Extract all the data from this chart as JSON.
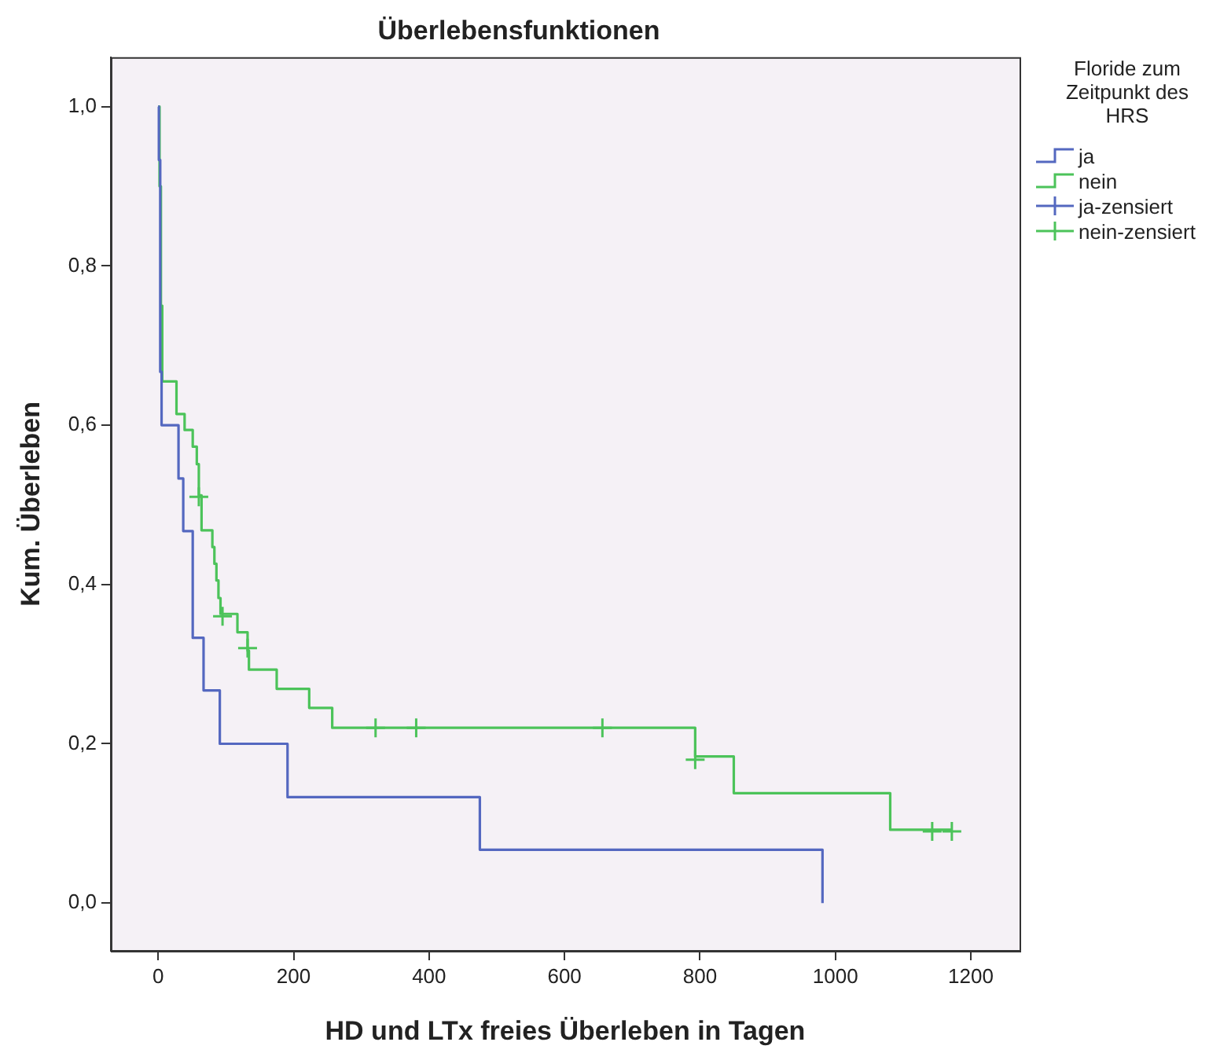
{
  "chart_data": {
    "type": "step",
    "title": "Überlebensfunktionen",
    "xlabel": "HD und LTx freies Überleben in Tagen",
    "ylabel": "Kum. Überleben",
    "legend_title": "Floride zum Zeitpunkt des HRS",
    "series": [
      {
        "name": "ja",
        "color": "#5468c0",
        "x": [
          0,
          1,
          3,
          5,
          30,
          37,
          51,
          67,
          91,
          191,
          475,
          981
        ],
        "values": [
          1.0,
          0.933,
          0.667,
          0.6,
          0.533,
          0.467,
          0.333,
          0.267,
          0.2,
          0.133,
          0.067,
          0
        ]
      },
      {
        "name": "nein",
        "color": "#4cc35a",
        "x": [
          0,
          2,
          4,
          6,
          27,
          39,
          51,
          57,
          60,
          64,
          80,
          83,
          86,
          89,
          92,
          117,
          132,
          134,
          175,
          223,
          257,
          793,
          850,
          1081,
          1172
        ],
        "values": [
          1.0,
          0.9,
          0.75,
          0.655,
          0.614,
          0.594,
          0.573,
          0.551,
          0.512,
          0.468,
          0.447,
          0.426,
          0.405,
          0.383,
          0.363,
          0.34,
          0.317,
          0.293,
          0.269,
          0.245,
          0.22,
          0.184,
          0.138,
          0.092,
          0.092
        ]
      },
      {
        "name": "ja-zensiert",
        "color": "#5468c0",
        "type": "scatter",
        "marker": "cross"
      },
      {
        "name": "nein-zensiert",
        "color": "#4cc35a",
        "type": "scatter",
        "marker": "cross",
        "x": [
          60,
          95,
          132,
          321,
          381,
          656,
          793,
          1143,
          1172
        ],
        "values": [
          0.51,
          0.36,
          0.32,
          0.22,
          0.22,
          0.22,
          0.18,
          0.09,
          0.09
        ]
      }
    ],
    "xlim": [
      -70,
      1272
    ],
    "ylim": [
      -0.06,
      1.062
    ],
    "xticks": [
      0,
      200,
      400,
      600,
      800,
      1000,
      1200
    ],
    "yticks": [
      {
        "value": 0,
        "label": "0,0"
      },
      {
        "value": 0.2,
        "label": "0,2"
      },
      {
        "value": 0.4,
        "label": "0,4"
      },
      {
        "value": 0.6,
        "label": "0,6"
      },
      {
        "value": 0.8,
        "label": "0,8"
      },
      {
        "value": 1.0,
        "label": "1,0"
      }
    ],
    "grid": false,
    "legend": "right"
  }
}
